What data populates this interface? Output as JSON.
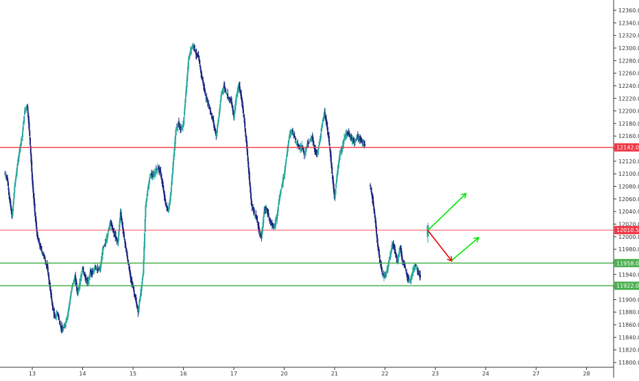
{
  "chart_data": {
    "type": "candlestick",
    "title": "",
    "xlabel": "",
    "ylabel": "",
    "ylim": [
      11790,
      12370
    ],
    "y_ticks": [
      "11800.0",
      "11820.0",
      "11840.0",
      "11860.0",
      "11880.0",
      "11900.0",
      "11920.0",
      "11940.0",
      "11960.0",
      "11980.0",
      "12000.0",
      "12020.0",
      "12040.0",
      "12060.0",
      "12080.0",
      "12100.0",
      "12120.0",
      "12140.0",
      "12160.0",
      "12180.0",
      "12200.0",
      "12220.0",
      "12240.0",
      "12260.0",
      "12280.0",
      "12300.0",
      "12320.0",
      "12340.0",
      "12360.0"
    ],
    "x_ticks": [
      {
        "label": "13",
        "t": 0.0
      },
      {
        "label": "14",
        "t": 1.0
      },
      {
        "label": "15",
        "t": 2.0
      },
      {
        "label": "16",
        "t": 3.0
      },
      {
        "label": "17",
        "t": 4.0
      },
      {
        "label": "20",
        "t": 5.0
      },
      {
        "label": "21",
        "t": 6.0
      },
      {
        "label": "22",
        "t": 7.0
      },
      {
        "label": "23",
        "t": 8.0
      },
      {
        "label": "24",
        "t": 9.0
      },
      {
        "label": "27",
        "t": 10.0
      },
      {
        "label": "28",
        "t": 11.0
      }
    ],
    "grid": false,
    "colors": {
      "up": "#26a69a",
      "down": "#1a237e",
      "resistance": "#f23645",
      "support": "#4caf50",
      "arrow_up": "#00e600",
      "arrow_down": "#e60000"
    },
    "levels": [
      {
        "label": "12142.0",
        "value": 12142,
        "color": "#f23645",
        "kind": "resistance"
      },
      {
        "label": "12010.5",
        "value": 12010.5,
        "color": "#f23645",
        "kind": "current"
      },
      {
        "label": "11958.0",
        "value": 11958,
        "color": "#4caf50",
        "kind": "support"
      },
      {
        "label": "11922.0",
        "value": 11922,
        "color": "#4caf50",
        "kind": "support"
      }
    ],
    "price_path": [
      [
        -0.55,
        12100
      ],
      [
        -0.5,
        12095
      ],
      [
        -0.45,
        12060
      ],
      [
        -0.4,
        12030
      ],
      [
        -0.35,
        12080
      ],
      [
        -0.3,
        12110
      ],
      [
        -0.25,
        12140
      ],
      [
        -0.2,
        12160
      ],
      [
        -0.15,
        12200
      ],
      [
        -0.1,
        12210
      ],
      [
        -0.05,
        12160
      ],
      [
        0.0,
        12090
      ],
      [
        0.05,
        12040
      ],
      [
        0.1,
        12000
      ],
      [
        0.15,
        11985
      ],
      [
        0.2,
        11975
      ],
      [
        0.25,
        11965
      ],
      [
        0.3,
        11950
      ],
      [
        0.35,
        11920
      ],
      [
        0.4,
        11890
      ],
      [
        0.45,
        11870
      ],
      [
        0.5,
        11880
      ],
      [
        0.55,
        11860
      ],
      [
        0.6,
        11850
      ],
      [
        0.65,
        11860
      ],
      [
        0.7,
        11875
      ],
      [
        0.75,
        11900
      ],
      [
        0.8,
        11925
      ],
      [
        0.85,
        11935
      ],
      [
        0.9,
        11910
      ],
      [
        0.95,
        11930
      ],
      [
        1.0,
        11950
      ],
      [
        1.05,
        11935
      ],
      [
        1.1,
        11925
      ],
      [
        1.15,
        11945
      ],
      [
        1.2,
        11940
      ],
      [
        1.25,
        11955
      ],
      [
        1.3,
        11945
      ],
      [
        1.35,
        11950
      ],
      [
        1.4,
        11980
      ],
      [
        1.45,
        11990
      ],
      [
        1.5,
        12005
      ],
      [
        1.55,
        12025
      ],
      [
        1.6,
        12010
      ],
      [
        1.65,
        12000
      ],
      [
        1.7,
        11990
      ],
      [
        1.75,
        12040
      ],
      [
        1.8,
        12010
      ],
      [
        1.85,
        11985
      ],
      [
        1.9,
        11960
      ],
      [
        1.95,
        11935
      ],
      [
        2.0,
        11920
      ],
      [
        2.05,
        11900
      ],
      [
        2.1,
        11880
      ],
      [
        2.15,
        11910
      ],
      [
        2.2,
        11940
      ],
      [
        2.25,
        12050
      ],
      [
        2.3,
        12080
      ],
      [
        2.35,
        12100
      ],
      [
        2.4,
        12095
      ],
      [
        2.45,
        12105
      ],
      [
        2.5,
        12110
      ],
      [
        2.55,
        12100
      ],
      [
        2.6,
        12075
      ],
      [
        2.65,
        12050
      ],
      [
        2.7,
        12040
      ],
      [
        2.75,
        12070
      ],
      [
        2.8,
        12120
      ],
      [
        2.85,
        12170
      ],
      [
        2.9,
        12180
      ],
      [
        2.95,
        12170
      ],
      [
        3.0,
        12180
      ],
      [
        3.05,
        12230
      ],
      [
        3.1,
        12280
      ],
      [
        3.15,
        12300
      ],
      [
        3.2,
        12305
      ],
      [
        3.25,
        12290
      ],
      [
        3.3,
        12285
      ],
      [
        3.35,
        12260
      ],
      [
        3.4,
        12240
      ],
      [
        3.45,
        12220
      ],
      [
        3.5,
        12210
      ],
      [
        3.55,
        12195
      ],
      [
        3.6,
        12180
      ],
      [
        3.65,
        12160
      ],
      [
        3.7,
        12190
      ],
      [
        3.75,
        12225
      ],
      [
        3.8,
        12240
      ],
      [
        3.85,
        12230
      ],
      [
        3.9,
        12220
      ],
      [
        3.95,
        12215
      ],
      [
        4.0,
        12190
      ],
      [
        4.05,
        12225
      ],
      [
        4.1,
        12240
      ],
      [
        4.15,
        12220
      ],
      [
        4.2,
        12190
      ],
      [
        4.25,
        12150
      ],
      [
        4.3,
        12100
      ],
      [
        4.35,
        12050
      ],
      [
        4.4,
        12040
      ],
      [
        4.45,
        12030
      ],
      [
        4.5,
        12010
      ],
      [
        4.55,
        12000
      ],
      [
        4.6,
        12040
      ],
      [
        4.65,
        12045
      ],
      [
        4.7,
        12030
      ],
      [
        4.75,
        12020
      ],
      [
        4.8,
        12015
      ],
      [
        4.85,
        12030
      ],
      [
        4.9,
        12060
      ],
      [
        4.95,
        12080
      ],
      [
        5.0,
        12100
      ],
      [
        5.05,
        12130
      ],
      [
        5.1,
        12160
      ],
      [
        5.15,
        12170
      ],
      [
        5.2,
        12160
      ],
      [
        5.25,
        12150
      ],
      [
        5.3,
        12140
      ],
      [
        5.35,
        12145
      ],
      [
        5.4,
        12130
      ],
      [
        5.45,
        12145
      ],
      [
        5.5,
        12150
      ],
      [
        5.55,
        12160
      ],
      [
        5.6,
        12140
      ],
      [
        5.65,
        12130
      ],
      [
        5.7,
        12150
      ],
      [
        5.75,
        12175
      ],
      [
        5.8,
        12200
      ],
      [
        5.85,
        12175
      ],
      [
        5.9,
        12145
      ],
      [
        5.95,
        12100
      ],
      [
        6.0,
        12060
      ],
      [
        6.05,
        12100
      ],
      [
        6.1,
        12130
      ],
      [
        6.15,
        12140
      ],
      [
        6.2,
        12160
      ],
      [
        6.25,
        12165
      ],
      [
        6.3,
        12160
      ],
      [
        6.35,
        12155
      ],
      [
        6.4,
        12150
      ],
      [
        6.45,
        12160
      ],
      [
        6.5,
        12155
      ],
      [
        6.55,
        12150
      ],
      [
        6.6,
        12145
      ]
    ],
    "gap_path": [
      [
        6.7,
        12085
      ],
      [
        6.75,
        12060
      ],
      [
        6.8,
        12030
      ],
      [
        6.85,
        11990
      ],
      [
        6.9,
        11960
      ],
      [
        6.95,
        11940
      ],
      [
        7.0,
        11935
      ],
      [
        7.05,
        11950
      ],
      [
        7.1,
        11970
      ],
      [
        7.15,
        11990
      ],
      [
        7.2,
        11975
      ],
      [
        7.25,
        11960
      ],
      [
        7.3,
        11985
      ],
      [
        7.35,
        11960
      ],
      [
        7.4,
        11950
      ],
      [
        7.45,
        11935
      ],
      [
        7.5,
        11930
      ],
      [
        7.55,
        11945
      ],
      [
        7.6,
        11955
      ],
      [
        7.65,
        11945
      ],
      [
        7.7,
        11935
      ]
    ],
    "last_candle": {
      "t": 7.85,
      "open": 12000,
      "high": 12022,
      "low": 11990,
      "close": 12018
    },
    "arrows": [
      {
        "color": "arrow_up",
        "from": [
          7.85,
          12010
        ],
        "to": [
          8.6,
          12068
        ]
      },
      {
        "color": "arrow_down",
        "from": [
          7.85,
          12010
        ],
        "to": [
          8.32,
          11962
        ]
      },
      {
        "color": "arrow_up",
        "from": [
          8.32,
          11962
        ],
        "to": [
          8.85,
          11998
        ]
      }
    ]
  }
}
